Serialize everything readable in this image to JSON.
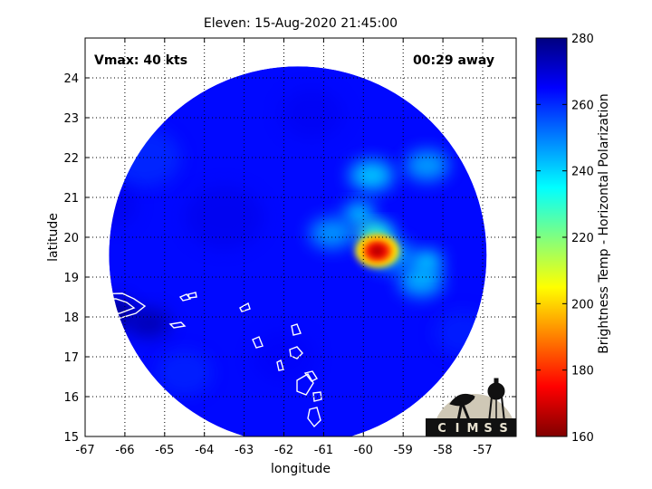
{
  "chart_data": {
    "type": "heatmap",
    "title": "Eleven: 15-Aug-2020 21:45:00",
    "xlabel": "longitude",
    "ylabel": "latitude",
    "xlim": [
      -67,
      -56.2
    ],
    "ylim": [
      15,
      25
    ],
    "x_ticks": [
      -67,
      -66,
      -65,
      -64,
      -63,
      -62,
      -61,
      -60,
      -59,
      -58,
      -57
    ],
    "y_ticks": [
      15,
      16,
      17,
      18,
      19,
      20,
      21,
      22,
      23,
      24
    ],
    "grid": "dotted",
    "annotations": {
      "vmax": "Vmax: 40 kts",
      "time_away": "00:29 away"
    },
    "colorbar": {
      "label": "Brightness Temp - Horizontal Polarization",
      "min": 160,
      "max": 280,
      "ticks": [
        160,
        180,
        200,
        220,
        240,
        260,
        280
      ],
      "colormap": "jet_reversed"
    },
    "swath": {
      "center": [
        -61.65,
        19.55
      ],
      "radius_deg": 4.75
    },
    "background_value": 264,
    "features": [
      {
        "lon": -59.65,
        "lat": 19.7,
        "value": 172
      },
      {
        "lon": -59.8,
        "lat": 20.05,
        "value": 228
      },
      {
        "lon": -60.1,
        "lat": 20.6,
        "value": 238
      },
      {
        "lon": -59.6,
        "lat": 20.1,
        "value": 236
      },
      {
        "lon": -59.8,
        "lat": 21.55,
        "value": 240
      },
      {
        "lon": -58.4,
        "lat": 21.8,
        "value": 245
      },
      {
        "lon": -58.4,
        "lat": 19.4,
        "value": 238
      },
      {
        "lon": -58.55,
        "lat": 18.9,
        "value": 243
      },
      {
        "lon": -59.3,
        "lat": 19.55,
        "value": 245
      },
      {
        "lon": -60.8,
        "lat": 20.1,
        "value": 246
      },
      {
        "lon": -66.3,
        "lat": 18.1,
        "value": 278
      },
      {
        "lon": -65.4,
        "lat": 17.85,
        "value": 274
      }
    ]
  },
  "logo": {
    "text": "CIMSS",
    "letters": [
      "C",
      "I",
      "M",
      "S",
      "S"
    ]
  },
  "colors": {
    "background": "#ffffff",
    "axis": "#000000",
    "grid": "#000000",
    "coast": "#ffffff"
  }
}
